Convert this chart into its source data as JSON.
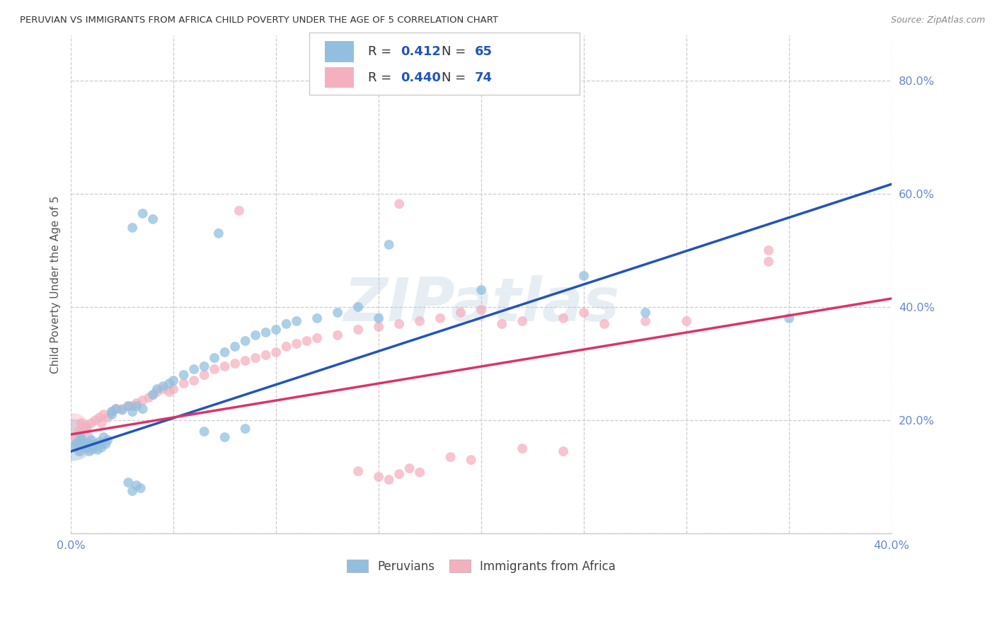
{
  "title": "PERUVIAN VS IMMIGRANTS FROM AFRICA CHILD POVERTY UNDER THE AGE OF 5 CORRELATION CHART",
  "source": "Source: ZipAtlas.com",
  "ylabel": "Child Poverty Under the Age of 5",
  "legend_label1": "Peruvians",
  "legend_label2": "Immigrants from Africa",
  "r1": 0.412,
  "n1": 65,
  "r2": 0.44,
  "n2": 74,
  "blue_color": "#92bfdf",
  "pink_color": "#f5b0c0",
  "trend_blue": "#2255bb",
  "trend_pink": "#dd3366",
  "dash_color": "#aaaaaa",
  "xmin": 0.0,
  "xmax": 0.4,
  "ymin": 0.0,
  "ymax": 0.88,
  "blue_slope": 1.18,
  "blue_intercept": 0.145,
  "pink_slope": 0.6,
  "pink_intercept": 0.175,
  "watermark": "ZIPatlas",
  "grid_color": "#cccccc",
  "background_color": "#ffffff",
  "title_color": "#333333",
  "source_color": "#888888",
  "tick_color": "#6688cc",
  "ylabel_color": "#555555"
}
